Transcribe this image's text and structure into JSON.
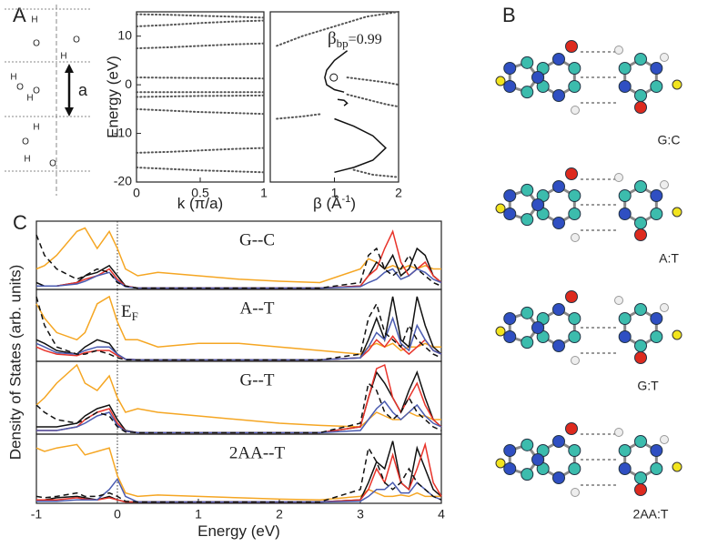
{
  "panel_labels": [
    "A",
    "B",
    "C"
  ],
  "schematic": {
    "period_label": "a",
    "atoms": [
      "H",
      "O",
      "H",
      "O",
      "H",
      "O",
      "H",
      "O",
      "H",
      "O",
      "H",
      "O"
    ]
  },
  "molecule_labels": [
    "G:C",
    "A:T",
    "G:T",
    "2AA:T"
  ],
  "chart_data": [
    {
      "type": "line",
      "xlabel": "k (π/a)",
      "ylabel": "Energy (eV)",
      "xlim": [
        0,
        1
      ],
      "ylim": [
        -20,
        15
      ],
      "xticks": [
        0,
        0.5,
        1
      ],
      "yticks": [
        10,
        0,
        -10,
        -20
      ],
      "x": [
        0,
        0.25,
        0.5,
        0.75,
        1
      ],
      "series": [
        {
          "color": "#555",
          "style": "dots",
          "values": [
            14.5,
            14.4,
            14.2,
            14.0,
            13.8
          ]
        },
        {
          "color": "#555",
          "style": "dots",
          "values": [
            12.0,
            12.3,
            12.7,
            13.0,
            13.2
          ]
        },
        {
          "color": "#555",
          "style": "dots",
          "values": [
            7.5,
            7.7,
            8.0,
            8.3,
            8.5
          ]
        },
        {
          "color": "#555",
          "style": "dots",
          "values": [
            1.5,
            1.45,
            1.4,
            1.35,
            1.3
          ]
        },
        {
          "color": "#555",
          "style": "dots",
          "values": [
            -1.5,
            -1.5,
            -1.5,
            -1.5,
            -1.5
          ]
        },
        {
          "color": "#555",
          "style": "dots",
          "values": [
            -2.5,
            -2.4,
            -2.3,
            -2.25,
            -2.2
          ]
        },
        {
          "color": "#555",
          "style": "dots",
          "values": [
            -5.0,
            -5.3,
            -5.6,
            -5.8,
            -6.0
          ]
        },
        {
          "color": "#555",
          "style": "dots",
          "values": [
            -14.0,
            -13.8,
            -13.5,
            -13.2,
            -13.0
          ]
        },
        {
          "color": "#555",
          "style": "dots",
          "values": [
            -17.0,
            -17.3,
            -17.6,
            -17.8,
            -18.0
          ]
        }
      ]
    },
    {
      "type": "line",
      "xlabel": "β (Å",
      "xlabel_sup": "-1",
      "xlabel_end": ")",
      "xlim": [
        0,
        2
      ],
      "ylim": [
        -20,
        15
      ],
      "xticks": [
        1,
        2
      ],
      "annotation": {
        "text": "β",
        "sub": "bp",
        "rest": "=0.99"
      },
      "marker": {
        "x": 0.99,
        "y": 1.5
      },
      "series": [
        {
          "color": "#111",
          "style": "solid",
          "x": [
            1.2,
            1.0,
            0.88,
            0.85,
            0.88,
            1.0,
            1.15
          ],
          "values": [
            7,
            5,
            3,
            1.5,
            0,
            -1,
            -1.5
          ]
        },
        {
          "color": "#111",
          "style": "solid",
          "x": [
            1.05,
            1.15,
            1.2,
            1.15
          ],
          "values": [
            -3,
            -3.2,
            -3.8,
            -4.3
          ]
        },
        {
          "color": "#111",
          "style": "solid",
          "x": [
            1.0,
            1.3,
            1.6,
            1.8,
            1.6,
            1.3,
            1.0
          ],
          "values": [
            -7,
            -8.5,
            -10.5,
            -13,
            -15.5,
            -17,
            -18
          ]
        },
        {
          "color": "#555",
          "style": "dots",
          "x": [
            0.1,
            0.5,
            1,
            1.5,
            2
          ],
          "values": [
            8,
            10,
            12,
            14,
            15
          ]
        },
        {
          "color": "#555",
          "style": "dots",
          "x": [
            1.2,
            1.5,
            1.8,
            2
          ],
          "values": [
            1.5,
            1,
            0.5,
            0
          ]
        },
        {
          "color": "#555",
          "style": "dots",
          "x": [
            1.2,
            1.5,
            1.8,
            2
          ],
          "values": [
            -2,
            -3,
            -4,
            -4.5
          ]
        },
        {
          "color": "#555",
          "style": "dots",
          "x": [
            0.1,
            0.5,
            0.8
          ],
          "values": [
            -7,
            -6.5,
            -6
          ]
        },
        {
          "color": "#555",
          "style": "dots",
          "x": [
            1.3,
            1.6,
            2
          ],
          "values": [
            -17.5,
            -18.5,
            -19
          ]
        }
      ]
    },
    {
      "type": "line",
      "title": "G--C",
      "ylabel": "Density of States (arb. units)",
      "xlim": [
        -1,
        4
      ],
      "ylim": [
        0,
        1
      ],
      "vline": 0,
      "x": [
        -1,
        -0.9,
        -0.75,
        -0.5,
        -0.4,
        -0.25,
        -0.1,
        0,
        0.1,
        0.25,
        0.5,
        1,
        1.5,
        2,
        2.5,
        3,
        3.1,
        3.2,
        3.3,
        3.4,
        3.5,
        3.6,
        3.7,
        3.8,
        3.9,
        4
      ],
      "series": [
        {
          "color": "#f5a623",
          "style": "solid",
          "values": [
            0.3,
            0.35,
            0.5,
            0.85,
            0.9,
            0.6,
            0.85,
            0.6,
            0.3,
            0.2,
            0.25,
            0.2,
            0.15,
            0.12,
            0.1,
            0.3,
            0.45,
            0.4,
            0.3,
            0.35,
            0.3,
            0.35,
            0.3,
            0.35,
            0.3,
            0.3
          ]
        },
        {
          "color": "#111",
          "style": "solid",
          "values": [
            0.1,
            0.05,
            0.05,
            0.1,
            0.2,
            0.25,
            0.35,
            0.2,
            0.05,
            0.02,
            0.02,
            0.02,
            0.02,
            0.02,
            0.02,
            0.05,
            0.2,
            0.4,
            0.3,
            0.5,
            0.2,
            0.3,
            0.6,
            0.5,
            0.2,
            0.1
          ]
        },
        {
          "color": "#e8332a",
          "style": "solid",
          "values": [
            0.05,
            0.05,
            0.05,
            0.1,
            0.15,
            0.2,
            0.3,
            0.15,
            0.05,
            0.02,
            0.02,
            0.02,
            0.02,
            0.02,
            0.02,
            0.05,
            0.2,
            0.3,
            0.6,
            0.85,
            0.4,
            0.2,
            0.3,
            0.4,
            0.2,
            0.1
          ]
        },
        {
          "color": "#4a5bb0",
          "style": "solid",
          "values": [
            0.05,
            0.05,
            0.05,
            0.08,
            0.12,
            0.2,
            0.25,
            0.12,
            0.04,
            0.02,
            0.02,
            0.02,
            0.02,
            0.02,
            0.02,
            0.04,
            0.1,
            0.15,
            0.25,
            0.3,
            0.15,
            0.2,
            0.3,
            0.25,
            0.15,
            0.1
          ]
        },
        {
          "color": "#111",
          "style": "dash",
          "values": [
            0.8,
            0.5,
            0.3,
            0.15,
            0.2,
            0.3,
            0.25,
            0.1,
            0.05,
            0.02,
            0.02,
            0.02,
            0.02,
            0.02,
            0.02,
            0.1,
            0.5,
            0.6,
            0.3,
            0.2,
            0.3,
            0.5,
            0.3,
            0.2,
            0.1,
            0.05
          ]
        }
      ]
    },
    {
      "type": "line",
      "title": "A--T",
      "annotation": {
        "text": "E",
        "sub": "F"
      },
      "xlim": [
        -1,
        4
      ],
      "ylim": [
        0,
        1
      ],
      "vline": 0,
      "x": [
        -1,
        -0.9,
        -0.75,
        -0.5,
        -0.4,
        -0.25,
        -0.1,
        0,
        0.1,
        0.25,
        0.5,
        1,
        1.5,
        2,
        2.5,
        3,
        3.1,
        3.2,
        3.3,
        3.4,
        3.5,
        3.6,
        3.7,
        3.8,
        3.9,
        4
      ],
      "series": [
        {
          "color": "#f5a623",
          "style": "solid",
          "values": [
            0.8,
            0.6,
            0.4,
            0.3,
            0.4,
            0.8,
            0.9,
            0.55,
            0.3,
            0.3,
            0.2,
            0.25,
            0.25,
            0.2,
            0.15,
            0.1,
            0.2,
            0.25,
            0.2,
            0.25,
            0.15,
            0.2,
            0.2,
            0.25,
            0.2,
            0.2
          ]
        },
        {
          "color": "#111",
          "style": "solid",
          "values": [
            0.3,
            0.25,
            0.15,
            0.1,
            0.2,
            0.3,
            0.25,
            0.1,
            0.03,
            0.02,
            0.02,
            0.02,
            0.02,
            0.02,
            0.02,
            0.05,
            0.3,
            0.6,
            0.3,
            0.9,
            0.3,
            0.2,
            0.9,
            0.5,
            0.2,
            0.1
          ]
        },
        {
          "color": "#e8332a",
          "style": "solid",
          "values": [
            0.2,
            0.15,
            0.1,
            0.08,
            0.12,
            0.15,
            0.15,
            0.08,
            0.03,
            0.02,
            0.02,
            0.02,
            0.02,
            0.02,
            0.02,
            0.05,
            0.15,
            0.3,
            0.2,
            0.35,
            0.2,
            0.1,
            0.2,
            0.3,
            0.15,
            0.1
          ]
        },
        {
          "color": "#4a5bb0",
          "style": "solid",
          "values": [
            0.25,
            0.2,
            0.12,
            0.1,
            0.15,
            0.2,
            0.2,
            0.1,
            0.03,
            0.02,
            0.02,
            0.02,
            0.02,
            0.02,
            0.02,
            0.05,
            0.2,
            0.4,
            0.3,
            0.6,
            0.25,
            0.15,
            0.5,
            0.3,
            0.15,
            0.1
          ]
        },
        {
          "color": "#111",
          "style": "dash",
          "values": [
            0.9,
            0.5,
            0.2,
            0.1,
            0.1,
            0.15,
            0.1,
            0.05,
            0.02,
            0.02,
            0.02,
            0.02,
            0.02,
            0.02,
            0.02,
            0.1,
            0.6,
            0.8,
            0.4,
            0.3,
            0.2,
            0.5,
            0.3,
            0.2,
            0.1,
            0.05
          ]
        }
      ]
    },
    {
      "type": "line",
      "title": "G--T",
      "xlim": [
        -1,
        4
      ],
      "ylim": [
        0,
        1
      ],
      "vline": 0,
      "x": [
        -1,
        -0.9,
        -0.75,
        -0.5,
        -0.4,
        -0.25,
        -0.1,
        0,
        0.1,
        0.25,
        0.5,
        1,
        1.5,
        2,
        2.5,
        3,
        3.1,
        3.2,
        3.3,
        3.4,
        3.5,
        3.6,
        3.7,
        3.8,
        3.9,
        4
      ],
      "series": [
        {
          "color": "#f5a623",
          "style": "solid",
          "values": [
            0.4,
            0.5,
            0.7,
            0.95,
            0.7,
            0.6,
            0.8,
            0.5,
            0.3,
            0.35,
            0.3,
            0.25,
            0.2,
            0.15,
            0.12,
            0.1,
            0.2,
            0.3,
            0.25,
            0.2,
            0.2,
            0.3,
            0.25,
            0.25,
            0.2,
            0.2
          ]
        },
        {
          "color": "#111",
          "style": "solid",
          "values": [
            0.1,
            0.1,
            0.1,
            0.15,
            0.25,
            0.35,
            0.4,
            0.2,
            0.05,
            0.02,
            0.02,
            0.02,
            0.02,
            0.02,
            0.02,
            0.1,
            0.5,
            0.85,
            0.7,
            0.5,
            0.3,
            0.6,
            0.85,
            0.5,
            0.2,
            0.1
          ]
        },
        {
          "color": "#e8332a",
          "style": "solid",
          "values": [
            0.05,
            0.05,
            0.05,
            0.1,
            0.2,
            0.3,
            0.35,
            0.15,
            0.04,
            0.02,
            0.02,
            0.02,
            0.02,
            0.02,
            0.02,
            0.1,
            0.5,
            0.9,
            0.95,
            0.5,
            0.3,
            0.5,
            0.7,
            0.4,
            0.2,
            0.1
          ]
        },
        {
          "color": "#4a5bb0",
          "style": "solid",
          "values": [
            0.05,
            0.05,
            0.05,
            0.1,
            0.15,
            0.25,
            0.3,
            0.12,
            0.04,
            0.02,
            0.02,
            0.02,
            0.02,
            0.02,
            0.02,
            0.05,
            0.2,
            0.35,
            0.45,
            0.3,
            0.2,
            0.3,
            0.4,
            0.25,
            0.15,
            0.1
          ]
        },
        {
          "color": "#111",
          "style": "dash",
          "values": [
            0.4,
            0.3,
            0.2,
            0.15,
            0.2,
            0.3,
            0.25,
            0.1,
            0.03,
            0.02,
            0.02,
            0.02,
            0.02,
            0.02,
            0.02,
            0.15,
            0.7,
            0.6,
            0.3,
            0.2,
            0.3,
            0.5,
            0.3,
            0.2,
            0.1,
            0.05
          ]
        }
      ]
    },
    {
      "type": "line",
      "title": "2AA--T",
      "xlabel": "Energy (eV)",
      "xlim": [
        -1,
        4
      ],
      "ylim": [
        0,
        1
      ],
      "vline": 0,
      "xticks": [
        -1,
        0,
        1,
        2,
        3,
        4
      ],
      "x": [
        -1,
        -0.9,
        -0.75,
        -0.5,
        -0.4,
        -0.25,
        -0.1,
        0,
        0.1,
        0.25,
        0.5,
        1,
        1.5,
        2,
        2.5,
        3,
        3.1,
        3.2,
        3.3,
        3.4,
        3.5,
        3.6,
        3.7,
        3.8,
        3.9,
        4
      ],
      "series": [
        {
          "color": "#f5a623",
          "style": "solid",
          "values": [
            0.8,
            0.75,
            0.8,
            0.85,
            0.7,
            0.75,
            0.8,
            0.4,
            0.15,
            0.1,
            0.12,
            0.1,
            0.08,
            0.06,
            0.05,
            0.1,
            0.2,
            0.15,
            0.1,
            0.1,
            0.12,
            0.1,
            0.15,
            0.1,
            0.1,
            0.1
          ]
        },
        {
          "color": "#111",
          "style": "solid",
          "values": [
            0.05,
            0.05,
            0.08,
            0.1,
            0.08,
            0.05,
            0.1,
            0.05,
            0.02,
            0.02,
            0.02,
            0.02,
            0.02,
            0.02,
            0.02,
            0.05,
            0.3,
            0.6,
            0.5,
            0.9,
            0.3,
            0.2,
            0.8,
            0.5,
            0.2,
            0.1
          ]
        },
        {
          "color": "#e8332a",
          "style": "solid",
          "values": [
            0.05,
            0.05,
            0.05,
            0.08,
            0.06,
            0.05,
            0.08,
            0.05,
            0.02,
            0.02,
            0.02,
            0.02,
            0.02,
            0.02,
            0.02,
            0.05,
            0.2,
            0.5,
            0.3,
            0.7,
            0.3,
            0.2,
            0.5,
            0.85,
            0.3,
            0.1
          ]
        },
        {
          "color": "#4a5bb0",
          "style": "solid",
          "values": [
            0.03,
            0.03,
            0.03,
            0.05,
            0.05,
            0.05,
            0.2,
            0.35,
            0.1,
            0.02,
            0.02,
            0.02,
            0.02,
            0.02,
            0.02,
            0.03,
            0.1,
            0.2,
            0.2,
            0.3,
            0.15,
            0.15,
            0.3,
            0.2,
            0.1,
            0.05
          ]
        },
        {
          "color": "#111",
          "style": "dash",
          "values": [
            0.1,
            0.08,
            0.1,
            0.15,
            0.1,
            0.1,
            0.15,
            0.1,
            0.03,
            0.02,
            0.02,
            0.02,
            0.02,
            0.02,
            0.02,
            0.2,
            0.8,
            0.6,
            0.3,
            0.2,
            0.3,
            0.5,
            0.3,
            0.2,
            0.1,
            0.05
          ]
        }
      ]
    }
  ]
}
